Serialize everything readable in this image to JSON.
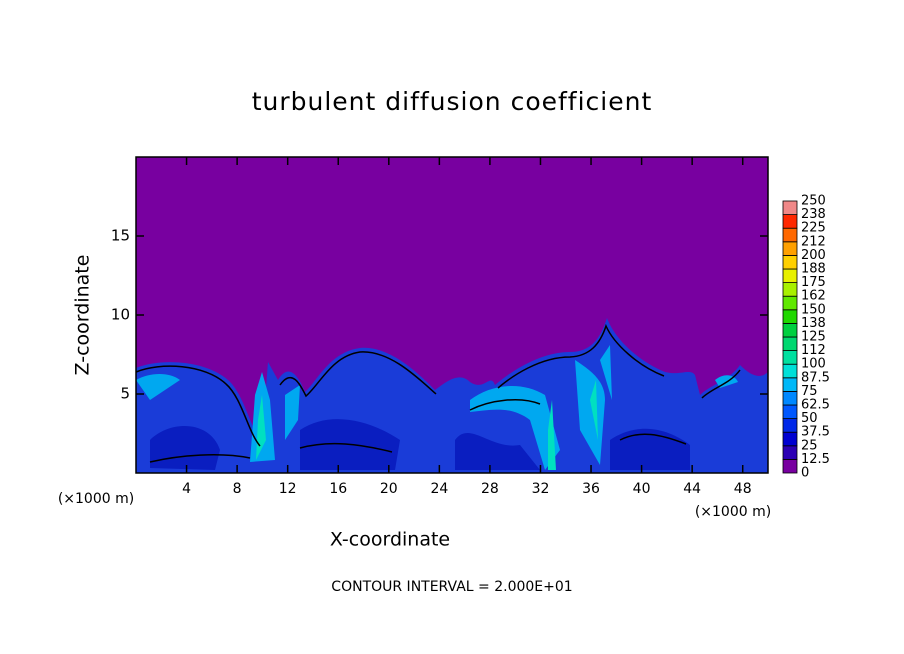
{
  "chart_data": {
    "type": "heatmap",
    "title": "turbulent diffusion coefficient",
    "x_label": "X-coordinate",
    "y_label": "Z-coordinate",
    "x_unit": "(×1000 m)",
    "y_unit": "(×1000 m)",
    "annotation": "CONTOUR INTERVAL = 2.000E+01",
    "xlim": [
      0,
      50
    ],
    "xticks": [
      4,
      8,
      12,
      16,
      20,
      24,
      28,
      32,
      36,
      40,
      44,
      48
    ],
    "ylim": [
      0,
      20
    ],
    "yticks": [
      5,
      10,
      15
    ],
    "colorbar": {
      "levels": [
        0,
        12.5,
        25,
        37.5,
        50,
        62.5,
        75,
        87.5,
        100,
        112,
        125,
        138,
        150,
        162,
        175,
        188,
        200,
        212,
        225,
        238,
        250
      ],
      "colors": [
        "#7800a0",
        "#2c00b4",
        "#0000d0",
        "#0028e8",
        "#0058ff",
        "#0088ff",
        "#00b8f8",
        "#00e0d8",
        "#00e0a0",
        "#00d870",
        "#00d040",
        "#20d800",
        "#60e800",
        "#a8f000",
        "#e8f000",
        "#ffd000",
        "#ffa000",
        "#ff6800",
        "#ff2800",
        "#f08888"
      ]
    }
  }
}
